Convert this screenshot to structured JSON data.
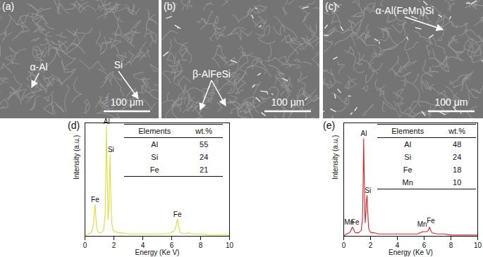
{
  "images": [
    {
      "label": "(a)",
      "annotations": [
        "α-Al",
        "Si"
      ],
      "scale_bar": "100 μm"
    },
    {
      "label": "(b)",
      "annotations": [
        "β-AlFeSi"
      ],
      "scale_bar": "100 μm"
    },
    {
      "label": "(c)",
      "annotations": [
        "α-Al(FeMn)Si"
      ],
      "scale_bar": "100 μm"
    }
  ],
  "chart_data": [
    {
      "type": "line",
      "title": "(d)",
      "x_label": "Energy (Ke V)",
      "y_label": "Intensity (a.u.)",
      "color": "#dede3a",
      "x": [
        0,
        0.2,
        0.4,
        0.5,
        0.6,
        0.65,
        0.7,
        0.75,
        0.8,
        0.9,
        1.0,
        1.1,
        1.2,
        1.3,
        1.4,
        1.45,
        1.49,
        1.53,
        1.6,
        1.65,
        1.7,
        1.74,
        1.78,
        1.85,
        1.95,
        2.1,
        2.3,
        2.6,
        3.0,
        3.5,
        4.0,
        4.5,
        5.0,
        5.5,
        5.9,
        6.2,
        6.3,
        6.4,
        6.5,
        6.6,
        7.0,
        7.1,
        7.5,
        8.0,
        8.5,
        9.0,
        9.5,
        10
      ],
      "values": [
        0,
        2,
        3,
        5,
        12,
        20,
        28,
        18,
        8,
        4,
        3,
        3,
        4,
        6,
        20,
        60,
        97,
        60,
        15,
        25,
        50,
        72,
        40,
        12,
        5,
        4,
        3,
        3,
        2,
        2,
        2,
        2,
        2,
        2,
        3,
        5,
        9,
        15,
        8,
        3,
        2,
        3,
        2,
        2,
        1,
        1,
        1,
        1
      ],
      "xlim": [
        0,
        10
      ],
      "xticks": [
        0,
        2,
        4,
        6,
        8,
        10
      ],
      "ylim": [
        0,
        100
      ],
      "tick_labels": "x",
      "annotations": [
        {
          "text": "Al",
          "x": 1.5,
          "y": 97
        },
        {
          "text": "Si",
          "x": 1.8,
          "y": 72
        },
        {
          "text": "Fe",
          "x": 0.7,
          "y": 28
        },
        {
          "text": "Fe",
          "x": 6.4,
          "y": 15
        }
      ],
      "table": {
        "header": [
          "Elements",
          "wt.%"
        ],
        "rows": [
          [
            "Al",
            55
          ],
          [
            "Si",
            24
          ],
          [
            "Fe",
            21
          ]
        ]
      }
    },
    {
      "type": "line",
      "title": "(e)",
      "x_label": "Energy (Ke V)",
      "y_label": "Intensity (a.u.)",
      "color": "#e8202a",
      "x": [
        0,
        0.2,
        0.4,
        0.5,
        0.6,
        0.65,
        0.7,
        0.75,
        0.8,
        0.9,
        1.0,
        1.1,
        1.2,
        1.3,
        1.4,
        1.45,
        1.49,
        1.53,
        1.6,
        1.65,
        1.7,
        1.74,
        1.78,
        1.85,
        1.95,
        2.1,
        2.3,
        2.6,
        3.0,
        3.5,
        4.0,
        4.5,
        5.0,
        5.5,
        5.9,
        6.2,
        6.3,
        6.4,
        6.5,
        6.6,
        7.0,
        7.1,
        7.5,
        8.0,
        8.5,
        9.0,
        9.5,
        10
      ],
      "values": [
        0,
        2,
        3,
        4,
        7,
        8,
        7,
        6,
        4,
        3,
        3,
        3,
        4,
        5,
        15,
        50,
        86,
        50,
        12,
        20,
        32,
        36,
        25,
        8,
        4,
        3,
        3,
        2,
        2,
        2,
        2,
        2,
        2,
        2,
        4,
        4,
        5,
        8,
        5,
        3,
        2,
        2,
        2,
        1,
        1,
        1,
        1,
        1
      ],
      "xlim": [
        0,
        10
      ],
      "xticks": [
        0,
        2,
        4,
        6,
        8,
        10
      ],
      "ylim": [
        0,
        100
      ],
      "tick_labels": "x",
      "annotations": [
        {
          "text": "Al",
          "x": 1.5,
          "y": 86
        },
        {
          "text": "Si",
          "x": 1.8,
          "y": 36
        },
        {
          "text": "Mn",
          "x": 0.4,
          "y": 8
        },
        {
          "text": "Fe",
          "x": 0.85,
          "y": 8
        },
        {
          "text": "Mn",
          "x": 5.85,
          "y": 6
        },
        {
          "text": "Fe",
          "x": 6.5,
          "y": 9
        }
      ],
      "table": {
        "header": [
          "Elements",
          "wt.%"
        ],
        "rows": [
          [
            "Al",
            48
          ],
          [
            "Si",
            24
          ],
          [
            "Fe",
            18
          ],
          [
            "Mn",
            10
          ]
        ]
      }
    }
  ]
}
